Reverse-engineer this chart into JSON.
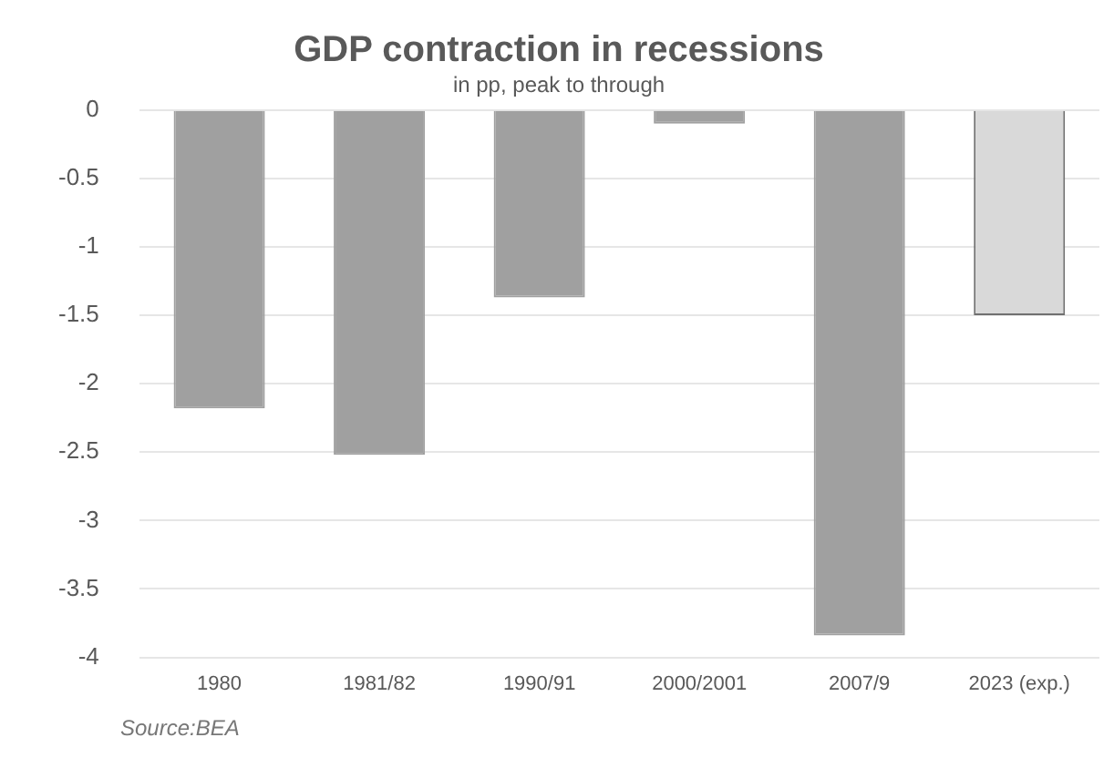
{
  "chart_data": {
    "type": "bar",
    "title": "GDP contraction in recessions",
    "subtitle": "in pp, peak to through",
    "categories": [
      "1980",
      "1981/82",
      "1990/91",
      "2000/2001",
      "2007/9",
      "2023 (exp.)"
    ],
    "values": [
      -2.18,
      -2.52,
      -1.37,
      -0.1,
      -3.84,
      -1.5
    ],
    "colors": [
      "#a0a0a0",
      "#a0a0a0",
      "#a0a0a0",
      "#a0a0a0",
      "#a0a0a0",
      "#d9d9d9"
    ],
    "ylim": [
      -4,
      0
    ],
    "yticks": [
      0,
      -0.5,
      -1,
      -1.5,
      -2,
      -2.5,
      -3,
      -3.5,
      -4
    ],
    "grid": "y",
    "legend": false,
    "annotations": [
      "Source:BEA"
    ]
  }
}
